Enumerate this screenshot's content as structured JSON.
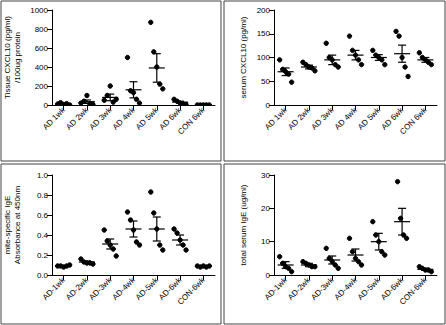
{
  "chart_data": [
    {
      "type": "scatter",
      "ylabel": "Tissue CXCL10 (pg/ml)\n/100ug protein",
      "categories": [
        "AD 1wk",
        "AD 2wk",
        "AD 3wk",
        "AD 4wk",
        "AD 5wk",
        "AD 6wk",
        "CON 6wk"
      ],
      "points": [
        [
          10,
          25,
          5,
          15,
          0
        ],
        [
          20,
          40,
          100,
          10,
          5
        ],
        [
          50,
          100,
          200,
          30,
          60
        ],
        [
          500,
          150,
          130,
          60,
          20
        ],
        [
          870,
          560,
          400,
          220,
          170
        ],
        [
          60,
          40,
          20,
          10,
          5
        ],
        [
          0,
          0,
          0,
          0,
          0
        ]
      ],
      "means": [
        12,
        35,
        80,
        160,
        390,
        30,
        0
      ],
      "errors": [
        5,
        18,
        35,
        85,
        150,
        10,
        0
      ],
      "ylim": [
        0,
        1000
      ],
      "yticks": [
        0,
        200,
        400,
        600,
        800,
        1000
      ],
      "grid": false,
      "color": "#000000"
    },
    {
      "type": "scatter",
      "ylabel": "serum CXCL10 (pg/ml)",
      "categories": [
        "AD 1wk",
        "AD 2wk",
        "AD 3wk",
        "AD 4wk",
        "AD 5wk",
        "AD 6wk",
        "CON 6wk"
      ],
      "points": [
        [
          95,
          75,
          70,
          65,
          48
        ],
        [
          90,
          85,
          80,
          78,
          72
        ],
        [
          130,
          100,
          95,
          85,
          80
        ],
        [
          145,
          115,
          105,
          95,
          85
        ],
        [
          115,
          105,
          100,
          95,
          85
        ],
        [
          155,
          145,
          100,
          80,
          60
        ],
        [
          110,
          100,
          95,
          90,
          85
        ]
      ],
      "means": [
        70,
        80,
        95,
        105,
        100,
        108,
        95
      ],
      "errors": [
        8,
        4,
        10,
        10,
        6,
        18,
        5
      ],
      "ylim": [
        0,
        200
      ],
      "yticks": [
        0,
        50,
        100,
        150,
        200
      ],
      "grid": false,
      "color": "#000000"
    },
    {
      "type": "scatter",
      "ylabel": "mite-specific IgE\nAbsorbance at 450nm",
      "categories": [
        "AD-1wk",
        "AD-2wk",
        "AD-3wk",
        "AD-4wk",
        "AD-5wk",
        "AD-6wk",
        "CON-6wk"
      ],
      "points": [
        [
          0.09,
          0.09,
          0.08,
          0.09,
          0.1
        ],
        [
          0.16,
          0.13,
          0.12,
          0.12,
          0.11
        ],
        [
          0.45,
          0.34,
          0.3,
          0.26,
          0.19
        ],
        [
          0.63,
          0.55,
          0.45,
          0.33,
          0.3
        ],
        [
          0.83,
          0.62,
          0.46,
          0.3,
          0.25
        ],
        [
          0.46,
          0.42,
          0.35,
          0.3,
          0.25
        ],
        [
          0.09,
          0.08,
          0.09,
          0.08,
          0.09
        ]
      ],
      "means": [
        0.09,
        0.13,
        0.31,
        0.46,
        0.46,
        0.35,
        0.085
      ],
      "errors": [
        0.005,
        0.01,
        0.05,
        0.08,
        0.12,
        0.05,
        0.003
      ],
      "ylim": [
        0,
        1
      ],
      "yticks": [
        {
          "value": 0,
          "label": "0.0"
        },
        {
          "value": 0.2,
          "label": "0.2"
        },
        {
          "value": 0.4,
          "label": "0.4"
        },
        {
          "value": 0.6,
          "label": "0.6"
        },
        {
          "value": 0.8,
          "label": "0.8"
        },
        {
          "value": 1,
          "label": "1.0"
        }
      ],
      "grid": false,
      "color": "#000000"
    },
    {
      "type": "scatter",
      "ylabel": "total serum IgE (ug/ml)",
      "categories": [
        "AD-1wk",
        "AD-2wk",
        "AD-3wk",
        "AD-4wk",
        "AD-5wk",
        "AD-6wk",
        "CON-6wk"
      ],
      "points": [
        [
          5.5,
          3.5,
          2.5,
          2,
          1
        ],
        [
          4,
          3.5,
          3,
          2.5,
          2.5
        ],
        [
          8,
          5,
          4,
          3,
          2
        ],
        [
          11,
          7,
          5,
          4,
          3
        ],
        [
          16,
          12,
          10,
          7,
          6
        ],
        [
          28,
          17,
          12,
          11
        ],
        [
          2.5,
          2,
          1.5,
          1.5,
          1
        ]
      ],
      "means": [
        3,
        3,
        4.5,
        6,
        10,
        16,
        1.7
      ],
      "errors": [
        1,
        0.5,
        1.2,
        1.8,
        2.5,
        4,
        0.3
      ],
      "ylim": [
        0,
        30
      ],
      "yticks": [
        0,
        10,
        20,
        30
      ],
      "grid": false,
      "color": "#000000"
    }
  ]
}
